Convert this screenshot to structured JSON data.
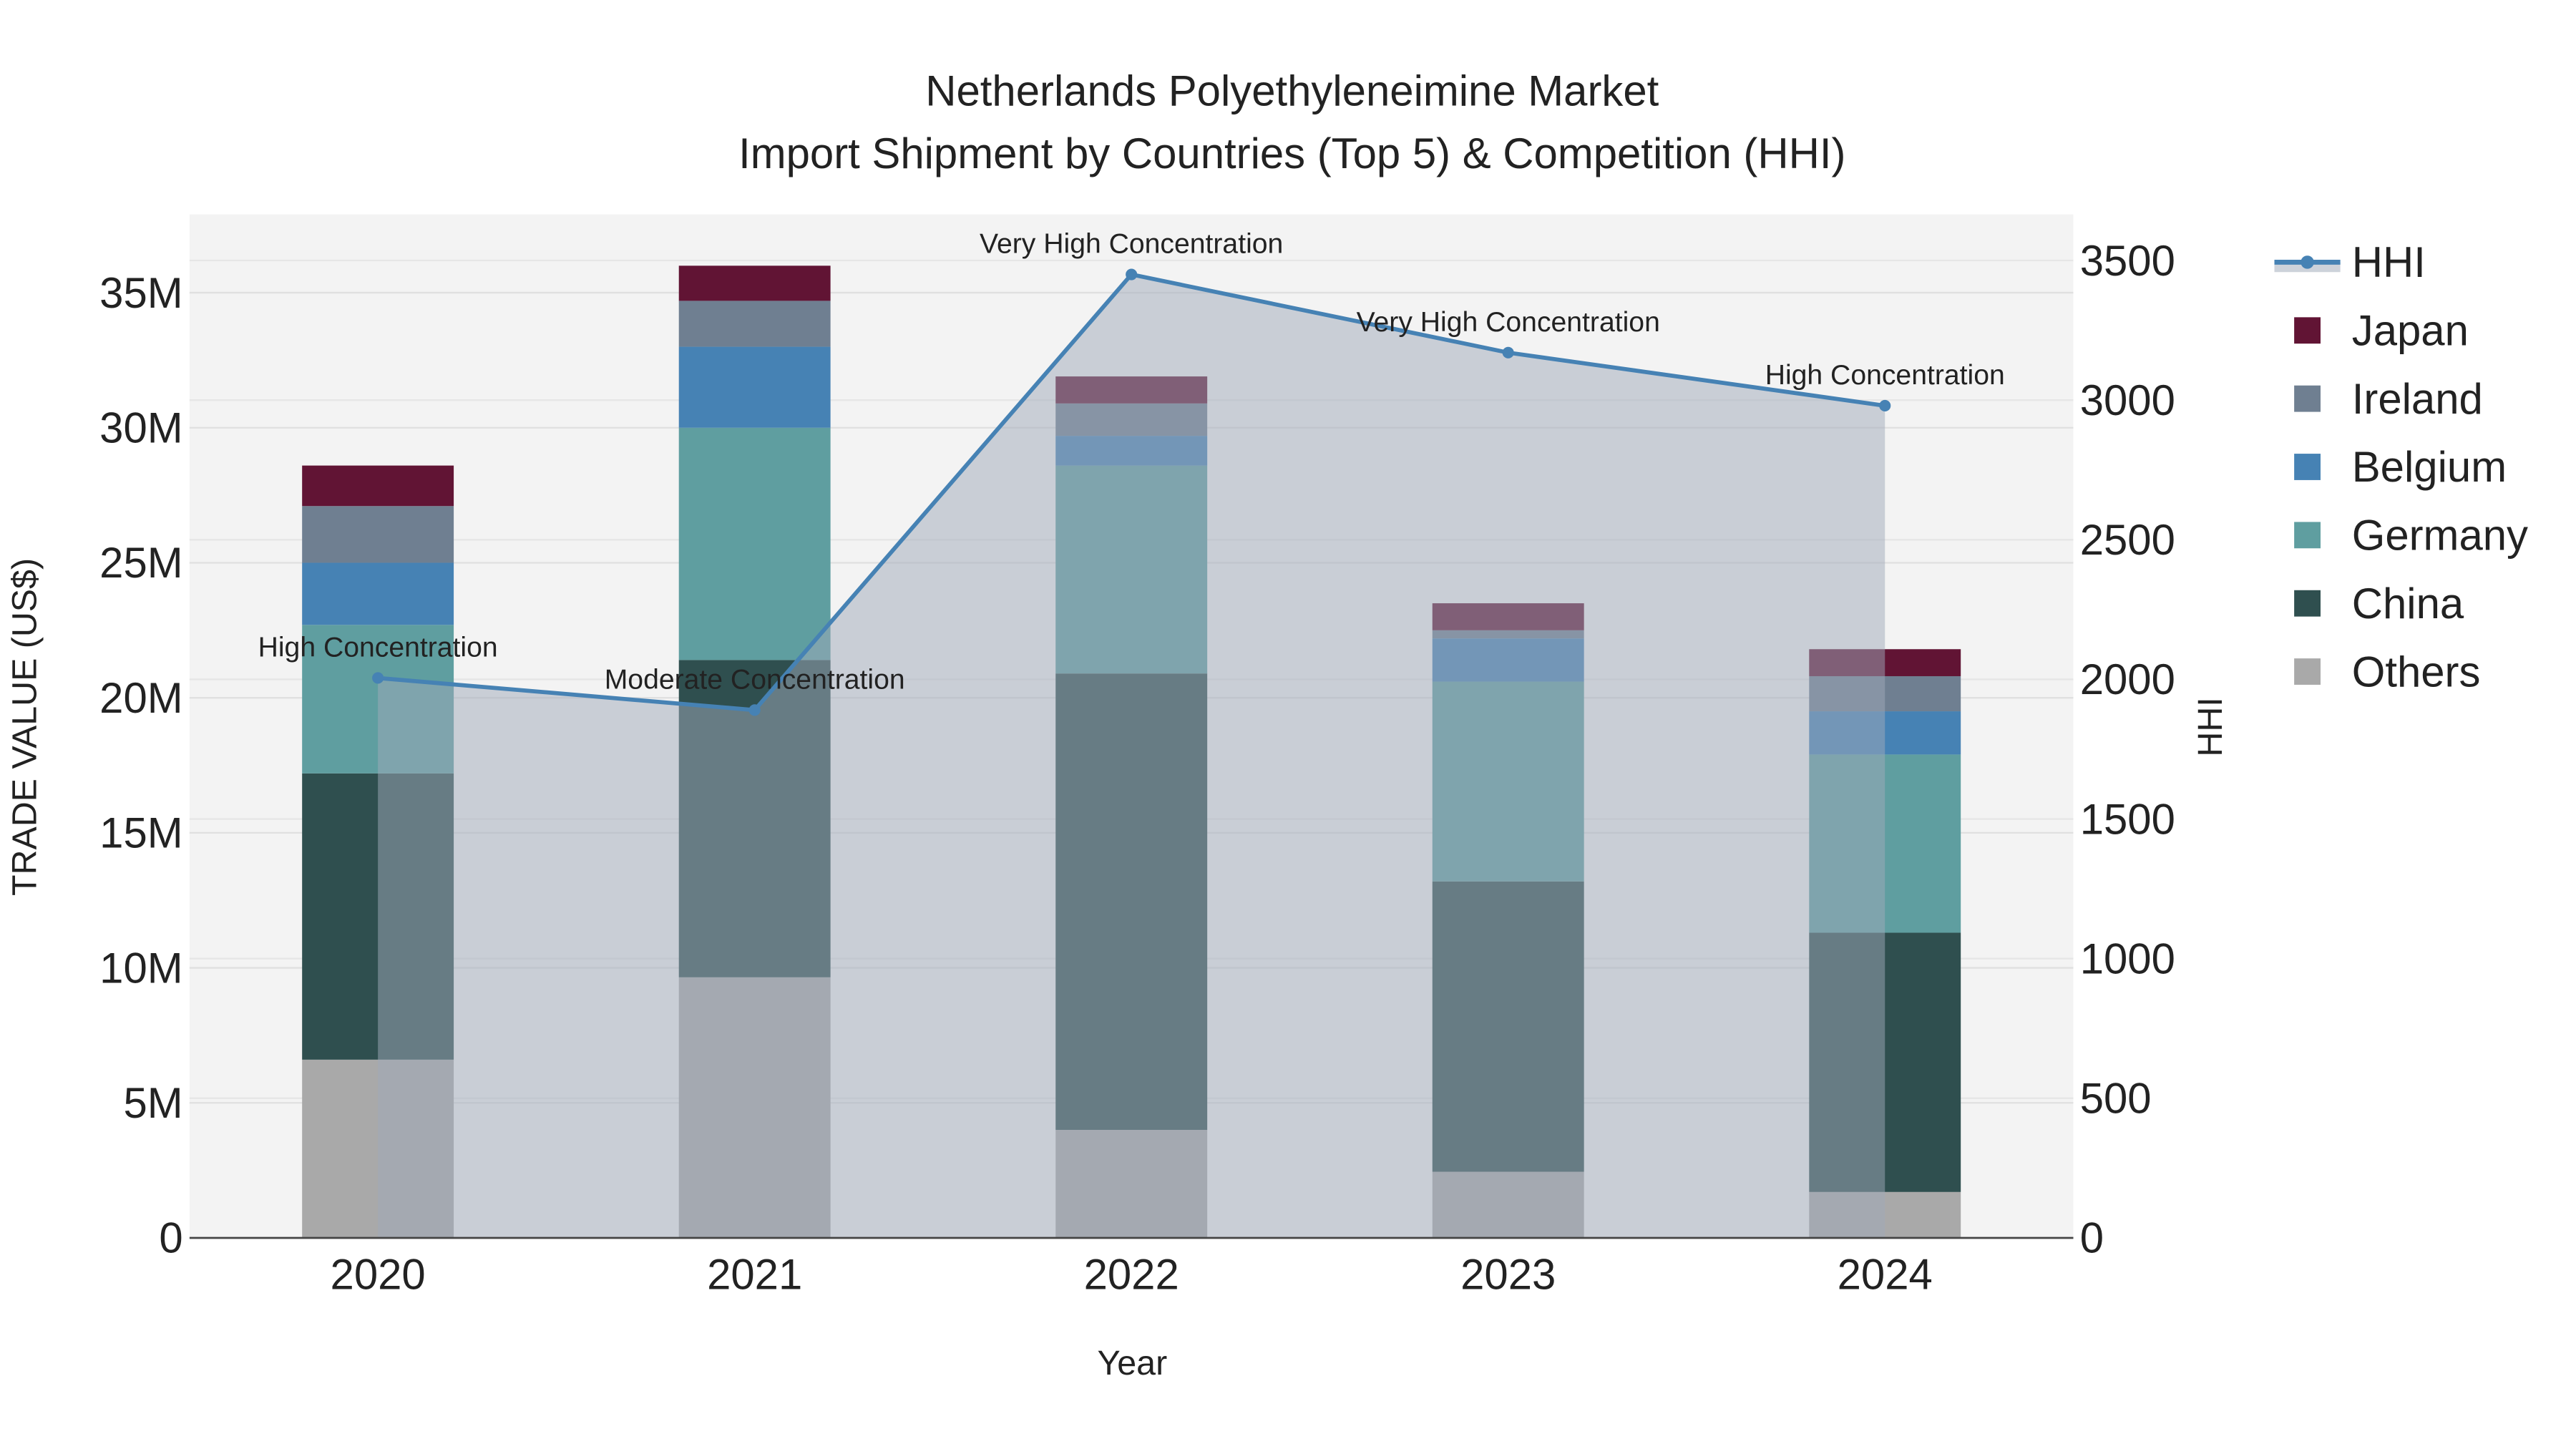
{
  "chart_data": {
    "type": "bar",
    "stacked": true,
    "title": "Netherlands Polyethyleneimine Market",
    "subtitle": "Import Shipment by Countries (Top 5) & Competition (HHI)",
    "xlabel": "Year",
    "ylabel": "TRADE VALUE (US$)",
    "y2label": "HHI",
    "categories": [
      "2020",
      "2021",
      "2022",
      "2023",
      "2024"
    ],
    "ylim": [
      0,
      37.9
    ],
    "y_unit": "M US$",
    "y_ticks": [
      0,
      5,
      10,
      15,
      20,
      25,
      30,
      35
    ],
    "y_tick_labels": [
      "0",
      "5M",
      "10M",
      "15M",
      "20M",
      "25M",
      "30M",
      "35M"
    ],
    "y2lim": [
      0,
      3665
    ],
    "y2_ticks": [
      0,
      500,
      1000,
      1500,
      2000,
      2500,
      3000,
      3500
    ],
    "y2_tick_labels": [
      "0",
      "500",
      "1000",
      "1500",
      "2000",
      "2500",
      "3000",
      "3500"
    ],
    "grid": true,
    "legend_position": "right",
    "series": [
      {
        "name": "Others",
        "color": "#a9a9a9",
        "values": [
          6.6,
          9.65,
          4.0,
          2.45,
          1.7
        ]
      },
      {
        "name": "China",
        "color": "#2f4f4f",
        "values": [
          10.6,
          11.75,
          16.9,
          10.75,
          9.6
        ]
      },
      {
        "name": "Germany",
        "color": "#5f9ea0",
        "values": [
          5.5,
          8.6,
          7.7,
          7.4,
          6.6
        ]
      },
      {
        "name": "Belgium",
        "color": "#4682b4",
        "values": [
          2.3,
          3.0,
          1.1,
          1.6,
          1.6
        ]
      },
      {
        "name": "Ireland",
        "color": "#6f7f91",
        "values": [
          2.1,
          1.7,
          1.2,
          0.3,
          1.3
        ]
      },
      {
        "name": "Japan",
        "color": "#611434",
        "values": [
          1.5,
          1.3,
          1.0,
          1.0,
          1.0
        ]
      }
    ],
    "line_series": {
      "name": "HHI",
      "color": "#4682b4",
      "axis": "right",
      "values": [
        2005,
        1890,
        3450,
        3170,
        2980
      ],
      "annotations": [
        "High Concentration",
        "Moderate Concentration",
        "Very High Concentration",
        "Very High Concentration",
        "High Concentration"
      ]
    },
    "legend": [
      "HHI",
      "Japan",
      "Ireland",
      "Belgium",
      "Germany",
      "China",
      "Others"
    ]
  }
}
